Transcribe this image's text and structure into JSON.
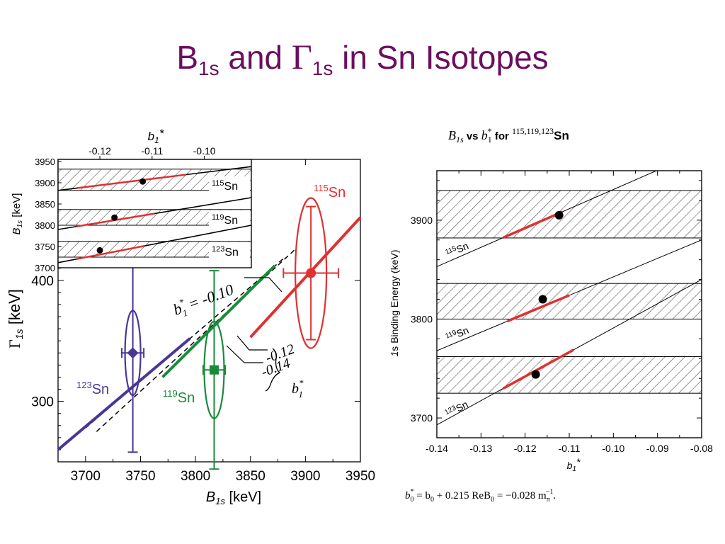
{
  "slide": {
    "title_b": "B",
    "title_b_sub": "1s",
    "title_and": " and ",
    "title_gamma": "Γ",
    "title_gamma_sub": "1s",
    "title_rest": " in Sn Isotopes"
  },
  "colors": {
    "title": "#6b0f5e",
    "sn115": "#e03030",
    "sn119": "#1a8a3a",
    "sn123": "#4b3596",
    "black": "#000000"
  },
  "chart_data": [
    {
      "type": "scatter",
      "id": "gamma-vs-b",
      "xlabel_main": "B",
      "xlabel_sub": "1s",
      "xlabel_unit": " [keV]",
      "ylabel_main": "Γ",
      "ylabel_sub": "1s",
      "ylabel_unit": " [keV]",
      "xlim": [
        3675,
        3950
      ],
      "ylim": [
        250,
        500
      ],
      "xticks": [
        3700,
        3750,
        3800,
        3850,
        3900,
        3950
      ],
      "yticks": [
        300,
        400
      ],
      "series": [
        {
          "name": "115Sn",
          "mass": "115",
          "el": "Sn",
          "colorKey": "sn115",
          "x": 3905,
          "y": 406,
          "xerr": 25,
          "yerr": 55,
          "ellipse": {
            "rx": 22,
            "ry": 62
          },
          "marker": "circle",
          "band": [
            [
              3850,
              353
            ],
            [
              3950,
              452
            ]
          ]
        },
        {
          "name": "119Sn",
          "mass": "119",
          "el": "Sn",
          "colorKey": "sn119",
          "x": 3817,
          "y": 326,
          "xerr": 10,
          "yerr": 82,
          "ellipse": {
            "rx": 14,
            "ry": 40
          },
          "marker": "square",
          "band": [
            [
              3770,
              320
            ],
            [
              3872,
              412
            ]
          ]
        },
        {
          "name": "123Sn",
          "mass": "123",
          "el": "Sn",
          "colorKey": "sn123",
          "x": 3743,
          "y": 340,
          "xerr": 10,
          "yerr": 82,
          "ellipse": {
            "rx": 11,
            "ry": 35
          },
          "marker": "diamond",
          "band": [
            [
              3675,
              260
            ],
            [
              3795,
              352
            ]
          ]
        }
      ],
      "dashed_lines": [
        [
          [
            3700,
            278
          ],
          [
            3880,
            418
          ]
        ],
        [
          [
            3710,
            275
          ],
          [
            3890,
            425
          ]
        ]
      ],
      "annotations": {
        "b_eq": "b",
        "b_eq_star": "*",
        "b_eq_sub": "1",
        "b_eq_rest": " = -0.10",
        "m012": "-0.12",
        "m014": "-0.14",
        "brace_b": "b",
        "brace_star": "*",
        "brace_sub": "1"
      }
    },
    {
      "type": "line",
      "id": "inset-b-vs-b1",
      "top_axis_label": "b",
      "top_axis_sub": "1",
      "top_axis_star": "*",
      "ylabel_main": "B",
      "ylabel_sub": "1s",
      "ylabel_unit": " [keV]",
      "xlim": [
        -0.128,
        -0.091
      ],
      "ylim": [
        3700,
        3955
      ],
      "xticks": [
        -0.12,
        -0.11,
        -0.1
      ],
      "xticklabels": [
        "-0.12",
        "-0.11",
        "-0.10"
      ],
      "yticks": [
        3700,
        3750,
        3800,
        3850,
        3900,
        3950
      ],
      "bands": [
        [
          3882,
          3932
        ],
        [
          3800,
          3837
        ],
        [
          3725,
          3762
        ]
      ],
      "lines": [
        {
          "label": "115",
          "el": "Sn",
          "from": [
            -0.128,
            3882
          ],
          "to": [
            -0.091,
            3938
          ],
          "red": [
            -0.1245,
            -0.1035
          ],
          "pt": [
            -0.1118,
            3903
          ]
        },
        {
          "label": "119",
          "el": "Sn",
          "from": [
            -0.128,
            3790
          ],
          "to": [
            -0.091,
            3865
          ],
          "red": [
            -0.1245,
            -0.1095
          ],
          "pt": [
            -0.1172,
            3818
          ]
        },
        {
          "label": "123",
          "el": "Sn",
          "from": [
            -0.128,
            3712
          ],
          "to": [
            -0.091,
            3800
          ],
          "red": [
            -0.1245,
            -0.1115
          ],
          "pt": [
            -0.12,
            3741
          ]
        }
      ]
    },
    {
      "type": "line",
      "id": "b1s-vs-b1star",
      "title_main": "B",
      "title_sub": "1s",
      "title_vs": " vs ",
      "title_b": "b",
      "title_b_sub": "1",
      "title_b_star": "*",
      "title_for": " for ",
      "title_iso": "115,119,123",
      "title_el": "Sn",
      "xlabel": "b",
      "xlabel_sub": "1",
      "xlabel_star": "*",
      "ylabel": "1s Binding Energy (keV)",
      "ylabel_prefix": "1",
      "ylabel_rest": "s Binding Energy (keV)",
      "xlim": [
        -0.14,
        -0.08
      ],
      "ylim": [
        3680,
        3950
      ],
      "xticks": [
        -0.14,
        -0.13,
        -0.12,
        -0.11,
        -0.1,
        -0.09,
        -0.08
      ],
      "xticklabels": [
        "-0.14",
        "-0.13",
        "-0.12",
        "-0.11",
        "-0.10",
        "-0.09",
        "-0.08"
      ],
      "yticks": [
        3700,
        3800,
        3900
      ],
      "bands": [
        [
          3882,
          3930
        ],
        [
          3800,
          3836
        ],
        [
          3725,
          3762
        ]
      ],
      "lines": [
        {
          "label": "115",
          "el": "Sn",
          "from": [
            -0.14,
            3853
          ],
          "to": [
            -0.08,
            3970
          ],
          "red": [
            -0.125,
            -0.1115
          ],
          "pt": [
            -0.1123,
            3905
          ]
        },
        {
          "label": "119",
          "el": "Sn",
          "from": [
            -0.14,
            3768
          ],
          "to": [
            -0.08,
            3880
          ],
          "red": [
            -0.124,
            -0.11
          ],
          "pt": [
            -0.116,
            3820
          ]
        },
        {
          "label": "123",
          "el": "Sn",
          "from": [
            -0.14,
            3693
          ],
          "to": [
            -0.08,
            3840
          ],
          "red": [
            -0.125,
            -0.109
          ],
          "pt": [
            -0.1176,
            3744
          ]
        }
      ]
    }
  ],
  "formula": {
    "b0s": "b",
    "b0s_sub": "0",
    "b0s_star": "*",
    "eq1": " = b",
    "eq1_sub": "0",
    "mid": " + 0.215 ReB",
    "mid_sub": "0",
    "eq2": " = −0.028 m",
    "m_sub": "π",
    "m_sup": "−1",
    "end": "."
  }
}
